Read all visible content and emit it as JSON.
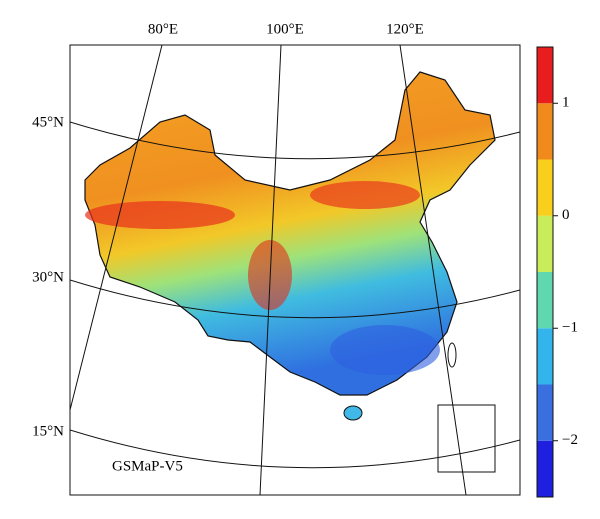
{
  "map": {
    "longitude_labels": [
      "80°E",
      "100°E",
      "120°E"
    ],
    "latitude_labels": [
      "45°N",
      "30°N",
      "15°N"
    ],
    "product_label": "GSMaP-V5"
  },
  "colorbar": {
    "lim": [
      -2.5,
      1.5
    ],
    "bounds": [
      -2.5,
      -2,
      -1.5,
      -1,
      -0.5,
      0,
      0.5,
      1,
      1.5
    ],
    "colors": [
      "#1f1fe0",
      "#3a6fe0",
      "#33b4ec",
      "#5fd8b0",
      "#c8ec5a",
      "#f7cf1c",
      "#f18a1d",
      "#e81e1e"
    ],
    "ticks": [
      1,
      0,
      {
        "value": -1,
        "label": "−1"
      },
      {
        "value": -2,
        "label": "−2"
      }
    ]
  }
}
